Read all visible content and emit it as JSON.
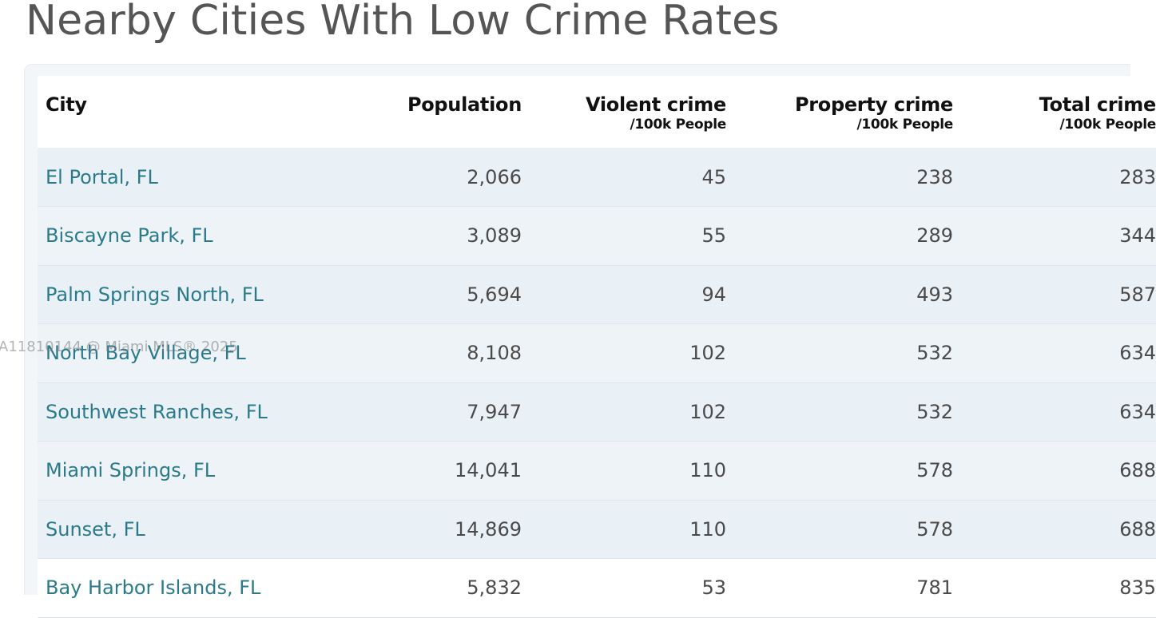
{
  "page": {
    "title": "Nearby Cities With Low Crime Rates"
  },
  "table": {
    "headers": {
      "city": "City",
      "population": "Population",
      "violent": "Violent crime",
      "violent_sub": "/100k People",
      "property": "Property crime",
      "property_sub": "/100k People",
      "total": "Total crime",
      "total_sub": "/100k People"
    },
    "rows": [
      {
        "city": "El Portal, FL",
        "population": "2,066",
        "violent": "45",
        "property": "238",
        "total": "283"
      },
      {
        "city": "Biscayne Park, FL",
        "population": "3,089",
        "violent": "55",
        "property": "289",
        "total": "344"
      },
      {
        "city": "Palm Springs North, FL",
        "population": "5,694",
        "violent": "94",
        "property": "493",
        "total": "587"
      },
      {
        "city": "North Bay Village, FL",
        "population": "8,108",
        "violent": "102",
        "property": "532",
        "total": "634"
      },
      {
        "city": "Southwest Ranches, FL",
        "population": "7,947",
        "violent": "102",
        "property": "532",
        "total": "634"
      },
      {
        "city": "Miami Springs, FL",
        "population": "14,041",
        "violent": "110",
        "property": "578",
        "total": "688"
      },
      {
        "city": "Sunset, FL",
        "population": "14,869",
        "violent": "110",
        "property": "578",
        "total": "688"
      },
      {
        "city": "Bay Harbor Islands, FL",
        "population": "5,832",
        "violent": "53",
        "property": "781",
        "total": "835"
      }
    ]
  },
  "watermark": {
    "text": "A11810144 @ Miami MLS® 2025"
  }
}
